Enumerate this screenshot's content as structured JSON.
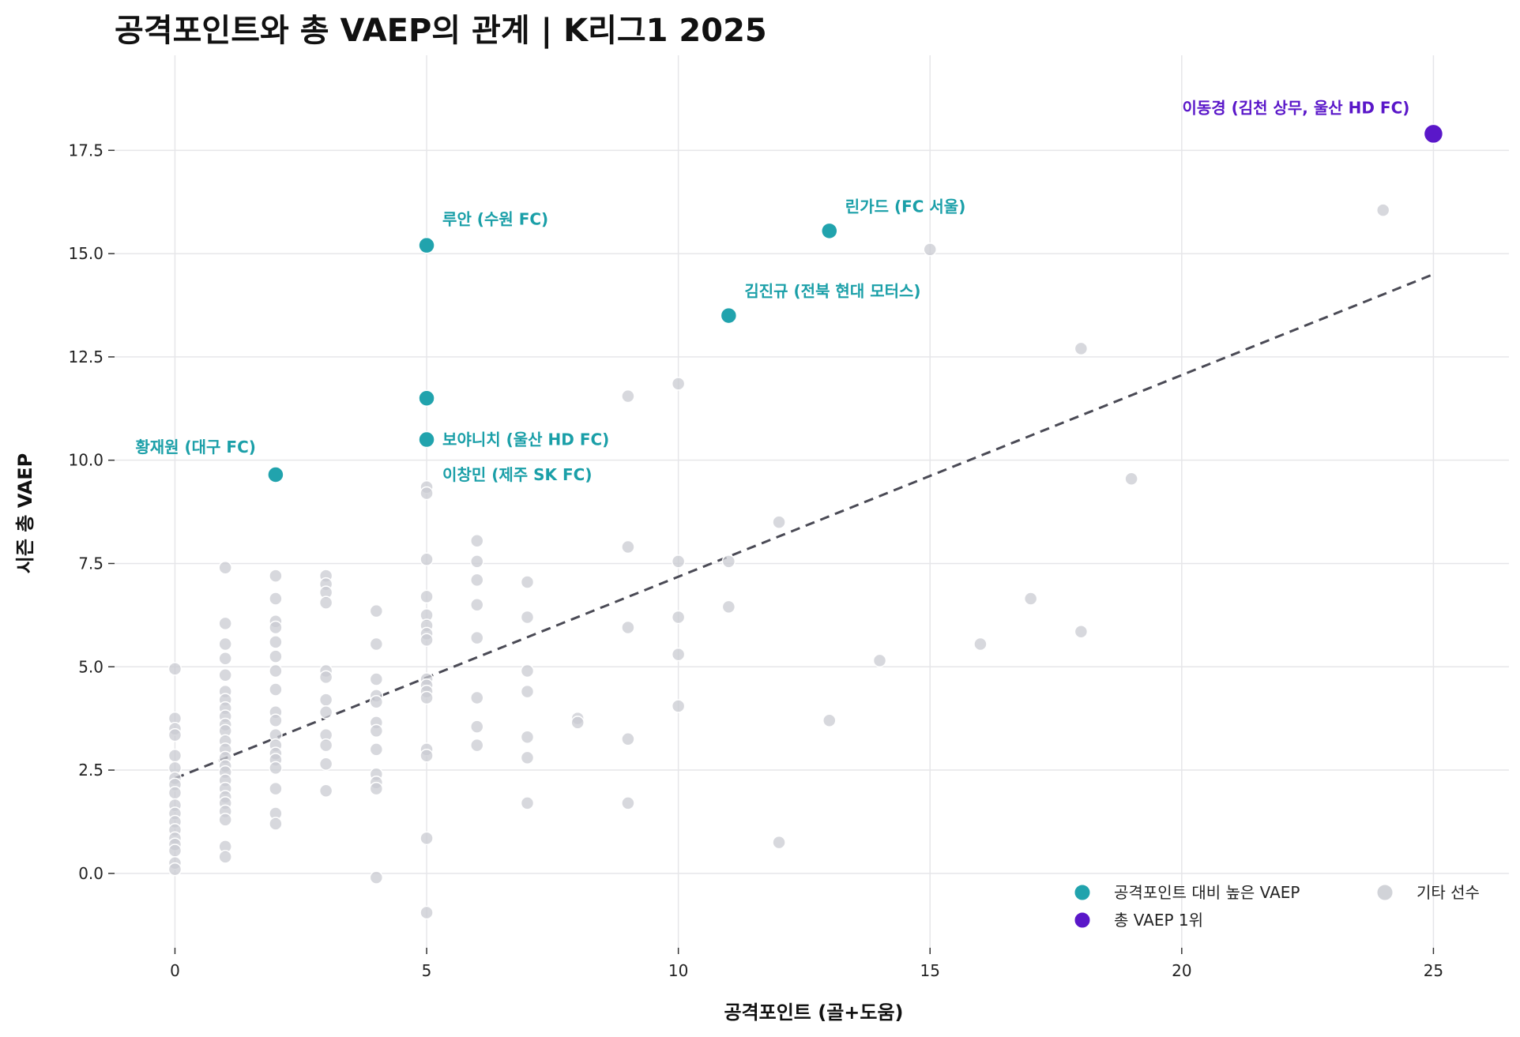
{
  "chart_data": {
    "type": "scatter",
    "title": "공격포인트와 총 VAEP의 관계 | K리그1 2025",
    "xlabel": "공격포인트 (골+도움)",
    "ylabel": "시즌 총 VAEP",
    "xlim": [
      -1.2,
      26.5
    ],
    "ylim": [
      -1.8,
      19.8
    ],
    "x_ticks": [
      0,
      5,
      10,
      15,
      20,
      25
    ],
    "x_tick_labels": [
      "0",
      "5",
      "10",
      "15",
      "20",
      "25"
    ],
    "y_ticks": [
      0,
      2.5,
      5,
      7.5,
      10,
      12.5,
      15,
      17.5
    ],
    "y_tick_labels": [
      "0.0",
      "2.5",
      "5.0",
      "7.5",
      "10.0",
      "12.5",
      "15.0",
      "17.5"
    ],
    "grid": true,
    "colors": {
      "high": "#21a3ad",
      "top": "#5a17c9",
      "other": "#c9cbd1",
      "trend": "#4a4a55"
    },
    "trendline": {
      "style": "dashed",
      "x": [
        0,
        25
      ],
      "y": [
        2.3,
        14.5
      ]
    },
    "series": [
      {
        "name": "공격포인트 대비 높은 VAEP",
        "color": "#21a3ad",
        "points": [
          {
            "x": 5,
            "y": 15.2,
            "label": "루안 (수원 FC)"
          },
          {
            "x": 13,
            "y": 15.55,
            "label": "린가드 (FC 서울)"
          },
          {
            "x": 11,
            "y": 13.5,
            "label": "김진규 (전북 현대 모터스)"
          },
          {
            "x": 5,
            "y": 11.5,
            "label": "이창민 (제주 SK FC)"
          },
          {
            "x": 5,
            "y": 10.5,
            "label": "보야니치 (울산 HD FC)"
          },
          {
            "x": 2,
            "y": 9.65,
            "label": "황재원 (대구 FC)"
          }
        ]
      },
      {
        "name": "총 VAEP 1위",
        "color": "#5a17c9",
        "points": [
          {
            "x": 25,
            "y": 17.9,
            "label": "이동경 (김천 상무, 울산 HD FC)"
          }
        ]
      },
      {
        "name": "기타 선수",
        "color": "#c9cbd1",
        "points": [
          {
            "x": 0,
            "y": 4.95
          },
          {
            "x": 0,
            "y": 3.75
          },
          {
            "x": 0,
            "y": 3.5
          },
          {
            "x": 0,
            "y": 3.35
          },
          {
            "x": 0,
            "y": 2.85
          },
          {
            "x": 0,
            "y": 2.55
          },
          {
            "x": 0,
            "y": 2.3
          },
          {
            "x": 0,
            "y": 2.15
          },
          {
            "x": 0,
            "y": 1.95
          },
          {
            "x": 0,
            "y": 1.65
          },
          {
            "x": 0,
            "y": 1.45
          },
          {
            "x": 0,
            "y": 1.25
          },
          {
            "x": 0,
            "y": 1.05
          },
          {
            "x": 0,
            "y": 0.85
          },
          {
            "x": 0,
            "y": 0.7
          },
          {
            "x": 0,
            "y": 0.55
          },
          {
            "x": 0,
            "y": 0.25
          },
          {
            "x": 0,
            "y": 0.1
          },
          {
            "x": 1,
            "y": 7.4
          },
          {
            "x": 1,
            "y": 6.05
          },
          {
            "x": 1,
            "y": 5.55
          },
          {
            "x": 1,
            "y": 5.2
          },
          {
            "x": 1,
            "y": 4.8
          },
          {
            "x": 1,
            "y": 4.4
          },
          {
            "x": 1,
            "y": 4.2
          },
          {
            "x": 1,
            "y": 4.0
          },
          {
            "x": 1,
            "y": 3.8
          },
          {
            "x": 1,
            "y": 3.6
          },
          {
            "x": 1,
            "y": 3.45
          },
          {
            "x": 1,
            "y": 3.2
          },
          {
            "x": 1,
            "y": 3.0
          },
          {
            "x": 1,
            "y": 2.8
          },
          {
            "x": 1,
            "y": 2.6
          },
          {
            "x": 1,
            "y": 2.45
          },
          {
            "x": 1,
            "y": 2.25
          },
          {
            "x": 1,
            "y": 2.05
          },
          {
            "x": 1,
            "y": 1.85
          },
          {
            "x": 1,
            "y": 1.7
          },
          {
            "x": 1,
            "y": 1.5
          },
          {
            "x": 1,
            "y": 1.3
          },
          {
            "x": 1,
            "y": 0.65
          },
          {
            "x": 1,
            "y": 0.4
          },
          {
            "x": 2,
            "y": 7.2
          },
          {
            "x": 2,
            "y": 6.65
          },
          {
            "x": 2,
            "y": 6.1
          },
          {
            "x": 2,
            "y": 5.95
          },
          {
            "x": 2,
            "y": 5.6
          },
          {
            "x": 2,
            "y": 5.25
          },
          {
            "x": 2,
            "y": 4.9
          },
          {
            "x": 2,
            "y": 4.45
          },
          {
            "x": 2,
            "y": 3.9
          },
          {
            "x": 2,
            "y": 3.7
          },
          {
            "x": 2,
            "y": 3.35
          },
          {
            "x": 2,
            "y": 3.1
          },
          {
            "x": 2,
            "y": 2.9
          },
          {
            "x": 2,
            "y": 2.75
          },
          {
            "x": 2,
            "y": 2.55
          },
          {
            "x": 2,
            "y": 2.05
          },
          {
            "x": 2,
            "y": 1.45
          },
          {
            "x": 2,
            "y": 1.2
          },
          {
            "x": 3,
            "y": 7.2
          },
          {
            "x": 3,
            "y": 7.0
          },
          {
            "x": 3,
            "y": 6.8
          },
          {
            "x": 3,
            "y": 6.55
          },
          {
            "x": 3,
            "y": 4.9
          },
          {
            "x": 3,
            "y": 4.75
          },
          {
            "x": 3,
            "y": 4.2
          },
          {
            "x": 3,
            "y": 3.9
          },
          {
            "x": 3,
            "y": 3.35
          },
          {
            "x": 3,
            "y": 3.1
          },
          {
            "x": 3,
            "y": 2.65
          },
          {
            "x": 3,
            "y": 2.0
          },
          {
            "x": 4,
            "y": 6.35
          },
          {
            "x": 4,
            "y": 5.55
          },
          {
            "x": 4,
            "y": 4.7
          },
          {
            "x": 4,
            "y": 4.3
          },
          {
            "x": 4,
            "y": 4.15
          },
          {
            "x": 4,
            "y": 3.65
          },
          {
            "x": 4,
            "y": 3.45
          },
          {
            "x": 4,
            "y": 3.0
          },
          {
            "x": 4,
            "y": 2.4
          },
          {
            "x": 4,
            "y": 2.2
          },
          {
            "x": 4,
            "y": 2.05
          },
          {
            "x": 4,
            "y": -0.1
          },
          {
            "x": 5,
            "y": 9.35
          },
          {
            "x": 5,
            "y": 9.2
          },
          {
            "x": 5,
            "y": 7.6
          },
          {
            "x": 5,
            "y": 6.7
          },
          {
            "x": 5,
            "y": 6.25
          },
          {
            "x": 5,
            "y": 6.0
          },
          {
            "x": 5,
            "y": 5.8
          },
          {
            "x": 5,
            "y": 5.65
          },
          {
            "x": 5,
            "y": 4.7
          },
          {
            "x": 5,
            "y": 4.55
          },
          {
            "x": 5,
            "y": 4.4
          },
          {
            "x": 5,
            "y": 4.25
          },
          {
            "x": 5,
            "y": 3.0
          },
          {
            "x": 5,
            "y": 2.85
          },
          {
            "x": 5,
            "y": 0.85
          },
          {
            "x": 5,
            "y": -0.95
          },
          {
            "x": 6,
            "y": 8.05
          },
          {
            "x": 6,
            "y": 7.55
          },
          {
            "x": 6,
            "y": 7.1
          },
          {
            "x": 6,
            "y": 6.5
          },
          {
            "x": 6,
            "y": 5.7
          },
          {
            "x": 6,
            "y": 4.25
          },
          {
            "x": 6,
            "y": 3.55
          },
          {
            "x": 6,
            "y": 3.1
          },
          {
            "x": 7,
            "y": 7.05
          },
          {
            "x": 7,
            "y": 6.2
          },
          {
            "x": 7,
            "y": 4.9
          },
          {
            "x": 7,
            "y": 4.4
          },
          {
            "x": 7,
            "y": 3.3
          },
          {
            "x": 7,
            "y": 2.8
          },
          {
            "x": 7,
            "y": 1.7
          },
          {
            "x": 8,
            "y": 3.75
          },
          {
            "x": 8,
            "y": 3.65
          },
          {
            "x": 9,
            "y": 11.55
          },
          {
            "x": 9,
            "y": 7.9
          },
          {
            "x": 9,
            "y": 5.95
          },
          {
            "x": 9,
            "y": 3.25
          },
          {
            "x": 9,
            "y": 1.7
          },
          {
            "x": 10,
            "y": 11.85
          },
          {
            "x": 10,
            "y": 7.55
          },
          {
            "x": 10,
            "y": 6.2
          },
          {
            "x": 10,
            "y": 5.3
          },
          {
            "x": 10,
            "y": 4.05
          },
          {
            "x": 11,
            "y": 7.55
          },
          {
            "x": 11,
            "y": 6.45
          },
          {
            "x": 12,
            "y": 8.5
          },
          {
            "x": 12,
            "y": 0.75
          },
          {
            "x": 13,
            "y": 3.7
          },
          {
            "x": 14,
            "y": 5.15
          },
          {
            "x": 15,
            "y": 15.1
          },
          {
            "x": 16,
            "y": 5.55
          },
          {
            "x": 17,
            "y": 6.65
          },
          {
            "x": 18,
            "y": 12.7
          },
          {
            "x": 18,
            "y": 5.85
          },
          {
            "x": 19,
            "y": 9.55
          },
          {
            "x": 24,
            "y": 16.05
          }
        ]
      }
    ],
    "legend": {
      "placement": "bottom-right",
      "entries": [
        {
          "label": "공격포인트 대비 높은 VAEP",
          "color": "#21a3ad"
        },
        {
          "label": "총 VAEP 1위",
          "color": "#5a17c9"
        },
        {
          "label": "기타 선수",
          "color": "#c9cbd1"
        }
      ]
    }
  }
}
